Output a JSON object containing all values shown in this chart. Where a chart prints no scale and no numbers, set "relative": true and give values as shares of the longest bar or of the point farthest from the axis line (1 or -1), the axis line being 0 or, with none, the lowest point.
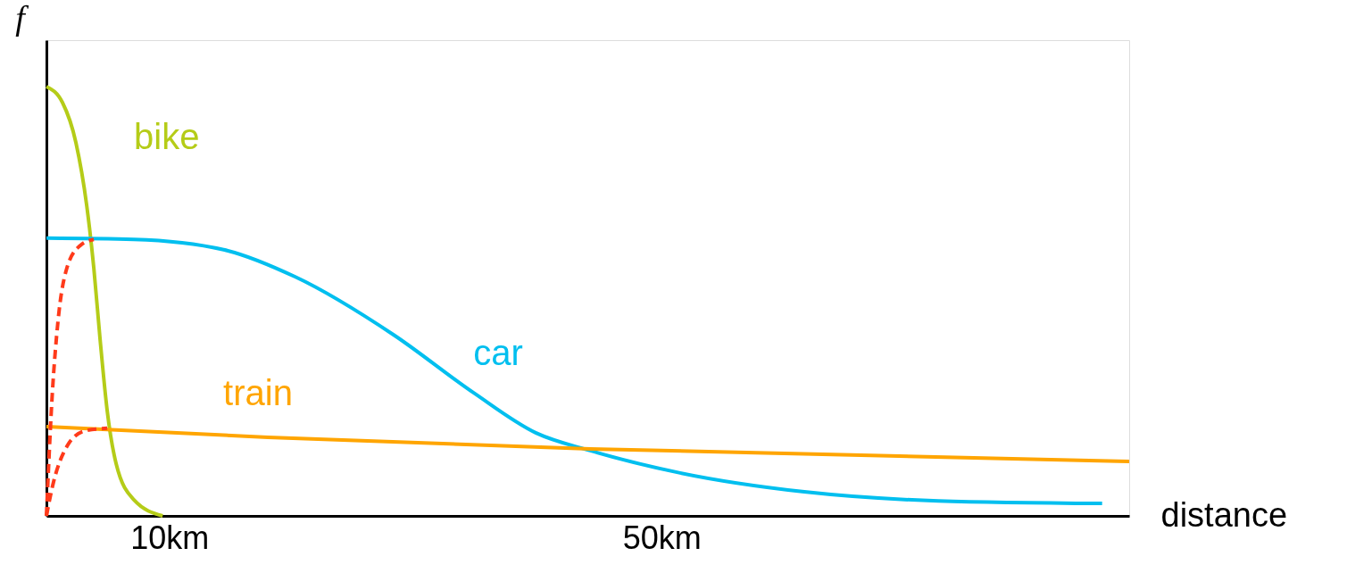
{
  "chart_data": {
    "type": "line",
    "relative": true,
    "xlabel": "distance",
    "ylabel": "f",
    "xlim": [
      0,
      88
    ],
    "xticks": [
      {
        "value": 10,
        "label": "10km"
      },
      {
        "value": 50,
        "label": "50km"
      }
    ],
    "grid": false,
    "series": [
      {
        "name": "bike",
        "color": "#b5cc18",
        "x": [
          0,
          1.3,
          2.4,
          3.27,
          3.85,
          4.36,
          4.94,
          5.67,
          7.12,
          9.45
        ],
        "values": [
          1.0,
          0.963,
          0.869,
          0.724,
          0.578,
          0.412,
          0.245,
          0.121,
          0.037,
          0
        ]
      },
      {
        "name": "car",
        "color": "#00bfef",
        "x": [
          0,
          7.1,
          14.4,
          20.2,
          28.2,
          34.7,
          39.8,
          44.2,
          51.5,
          61.6,
          72.5,
          85.8
        ],
        "values": [
          0.647,
          0.644,
          0.62,
          0.557,
          0.422,
          0.287,
          0.193,
          0.152,
          0.1,
          0.056,
          0.035,
          0.029
        ]
      },
      {
        "name": "train",
        "color": "#ffa500",
        "x": [
          0,
          18,
          44.2,
          88
        ],
        "values": [
          0.208,
          0.183,
          0.156,
          0.127
        ]
      },
      {
        "color": "#ff3a1a",
        "line_style": "dashed",
        "x": [
          0,
          0.44,
          0.94,
          1.67,
          2.76,
          3.85
        ],
        "values": [
          0,
          0.266,
          0.453,
          0.578,
          0.63,
          0.644
        ]
      },
      {
        "color": "#ff3a1a",
        "line_style": "dashed",
        "x": [
          0,
          0.58,
          1.67,
          3.12,
          4.94
        ],
        "values": [
          0,
          0.079,
          0.162,
          0.198,
          0.204
        ]
      }
    ]
  }
}
